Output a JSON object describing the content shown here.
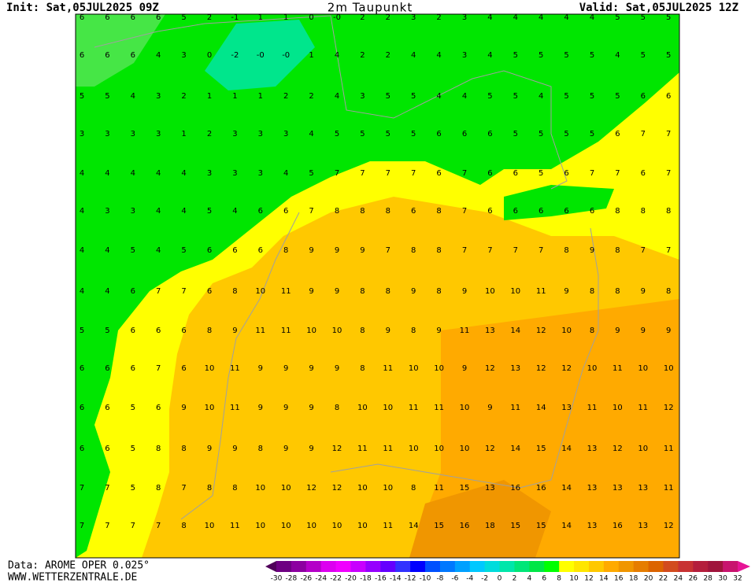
{
  "header": {
    "init": "Init: Sat,05JUL2025 09Z",
    "title": "2m Taupunkt",
    "valid": "Valid: Sat,05JUL2025 12Z"
  },
  "footer": {
    "data": "Data: AROME OPER 0.025°",
    "site": "WWW.WETTERZENTRALE.DE"
  },
  "map": {
    "rows": [
      [
        "6",
        "6",
        "6",
        "6",
        "5",
        "2",
        "-1",
        "1",
        "1",
        "0",
        "-0",
        "2",
        "2",
        "3",
        "2",
        "3",
        "4",
        "4",
        "4",
        "4",
        "4",
        "5",
        "5",
        "5"
      ],
      [
        "6",
        "6",
        "6",
        "4",
        "3",
        "0",
        "-2",
        "-0",
        "-0",
        "1",
        "4",
        "2",
        "2",
        "4",
        "4",
        "3",
        "4",
        "5",
        "5",
        "5",
        "5",
        "4",
        "5",
        "5"
      ],
      [
        "5",
        "5",
        "4",
        "3",
        "2",
        "1",
        "1",
        "1",
        "2",
        "2",
        "4",
        "3",
        "5",
        "5",
        "4",
        "4",
        "5",
        "5",
        "4",
        "5",
        "5",
        "5",
        "6",
        "6"
      ],
      [
        "3",
        "3",
        "3",
        "3",
        "1",
        "2",
        "3",
        "3",
        "3",
        "4",
        "5",
        "5",
        "5",
        "5",
        "6",
        "6",
        "6",
        "5",
        "5",
        "5",
        "5",
        "6",
        "7",
        "7"
      ],
      [
        "4",
        "4",
        "4",
        "4",
        "4",
        "3",
        "3",
        "3",
        "4",
        "5",
        "7",
        "7",
        "7",
        "7",
        "6",
        "7",
        "6",
        "6",
        "5",
        "6",
        "7",
        "7",
        "6",
        "7"
      ],
      [
        "4",
        "3",
        "3",
        "4",
        "4",
        "5",
        "4",
        "6",
        "6",
        "7",
        "8",
        "8",
        "8",
        "6",
        "8",
        "7",
        "6",
        "6",
        "6",
        "6",
        "6",
        "8",
        "8",
        "8"
      ],
      [
        "4",
        "4",
        "5",
        "4",
        "5",
        "6",
        "6",
        "6",
        "8",
        "9",
        "9",
        "9",
        "7",
        "8",
        "8",
        "7",
        "7",
        "7",
        "7",
        "8",
        "9",
        "8",
        "7",
        "7"
      ],
      [
        "4",
        "4",
        "6",
        "7",
        "7",
        "6",
        "8",
        "10",
        "11",
        "9",
        "9",
        "8",
        "8",
        "9",
        "8",
        "9",
        "10",
        "10",
        "11",
        "9",
        "8",
        "8",
        "9",
        "8"
      ],
      [
        "5",
        "5",
        "6",
        "6",
        "6",
        "8",
        "9",
        "11",
        "11",
        "10",
        "10",
        "8",
        "9",
        "8",
        "9",
        "11",
        "13",
        "14",
        "12",
        "10",
        "8",
        "9",
        "9",
        "9"
      ],
      [
        "6",
        "6",
        "6",
        "7",
        "6",
        "10",
        "11",
        "9",
        "9",
        "9",
        "9",
        "8",
        "11",
        "10",
        "10",
        "9",
        "12",
        "13",
        "12",
        "12",
        "10",
        "11",
        "10",
        "10"
      ],
      [
        "6",
        "6",
        "5",
        "6",
        "9",
        "10",
        "11",
        "9",
        "9",
        "9",
        "8",
        "10",
        "10",
        "11",
        "11",
        "10",
        "9",
        "11",
        "14",
        "13",
        "11",
        "10",
        "11",
        "12"
      ],
      [
        "6",
        "6",
        "5",
        "8",
        "8",
        "9",
        "9",
        "8",
        "9",
        "9",
        "12",
        "11",
        "11",
        "10",
        "10",
        "10",
        "12",
        "14",
        "15",
        "14",
        "13",
        "12",
        "10",
        "11"
      ],
      [
        "7",
        "7",
        "5",
        "8",
        "7",
        "8",
        "8",
        "10",
        "10",
        "12",
        "12",
        "10",
        "10",
        "8",
        "11",
        "15",
        "13",
        "16",
        "16",
        "14",
        "13",
        "13",
        "13",
        "11"
      ],
      [
        "7",
        "7",
        "7",
        "7",
        "8",
        "10",
        "11",
        "10",
        "10",
        "10",
        "10",
        "10",
        "11",
        "14",
        "15",
        "16",
        "18",
        "15",
        "15",
        "14",
        "13",
        "16",
        "13",
        "12"
      ]
    ]
  },
  "legend": {
    "labels": [
      -30,
      -28,
      -26,
      -24,
      -22,
      -20,
      -18,
      -16,
      -14,
      -12,
      -10,
      -8,
      -6,
      -4,
      -2,
      0,
      2,
      4,
      6,
      8,
      10,
      12,
      14,
      16,
      18,
      20,
      22,
      24,
      26,
      28,
      30,
      32
    ],
    "colors": [
      "#50005a",
      "#6e0082",
      "#8c00a0",
      "#b400c8",
      "#dc00f0",
      "#f000ff",
      "#c800ff",
      "#9600ff",
      "#6400ff",
      "#3232ff",
      "#0000ff",
      "#0050ff",
      "#0078ff",
      "#00a0ff",
      "#00c8ff",
      "#00dcdc",
      "#00e6aa",
      "#00e678",
      "#00e646",
      "#00ff00",
      "#ffff00",
      "#ffe600",
      "#ffc800",
      "#ffaa00",
      "#f09600",
      "#e67d00",
      "#dc6400",
      "#d24b1e",
      "#c83232",
      "#b41e3c",
      "#a0143c",
      "#c8146e",
      "#e61496"
    ]
  }
}
